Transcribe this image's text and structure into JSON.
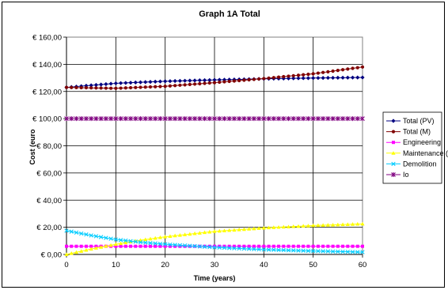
{
  "chart_data": {
    "type": "line",
    "title": "Graph 1A Total",
    "xlabel": "Time (years)",
    "ylabel": "Cost (euro",
    "xlim": [
      0,
      60
    ],
    "ylim": [
      0,
      160
    ],
    "x_ticks": [
      0,
      10,
      20,
      30,
      40,
      50,
      60
    ],
    "y_ticks": [
      "€ 0,00",
      "€ 20,00",
      "€ 40,00",
      "€ 60,00",
      "€ 80,00",
      "€ 100,00",
      "€ 120,00",
      "€ 140,00",
      "€ 160,00"
    ],
    "grid": "major y and x",
    "legend": "right",
    "series": [
      {
        "name": "Total (PV)",
        "color": "#000080",
        "marker": "diamond",
        "x": [
          0,
          10,
          20,
          30,
          40,
          50,
          60
        ],
        "y": [
          123,
          126,
          127.5,
          128.5,
          129.3,
          129.9,
          130.3
        ]
      },
      {
        "name": "Total (M)",
        "color": "#800000",
        "marker": "circle",
        "x": [
          0,
          10,
          20,
          30,
          40,
          50,
          60
        ],
        "y": [
          123,
          122.3,
          123.8,
          126.5,
          129.5,
          133,
          138
        ]
      },
      {
        "name": "Engineering",
        "color": "#ff00ff",
        "marker": "square",
        "x": [
          0,
          10,
          20,
          30,
          40,
          50,
          60
        ],
        "y": [
          6,
          6,
          6,
          6,
          6,
          6,
          6
        ]
      },
      {
        "name": "Maintenance (PV",
        "color": "#ffff00",
        "marker": "triangle",
        "x": [
          0,
          5,
          10,
          15,
          20,
          30,
          40,
          50,
          60
        ],
        "y": [
          0,
          4,
          7.5,
          10.5,
          13,
          17,
          19.5,
          21.3,
          22.5
        ]
      },
      {
        "name": "Demolition",
        "color": "#00ccff",
        "marker": "x",
        "x": [
          0,
          5,
          10,
          15,
          20,
          30,
          40,
          50,
          60
        ],
        "y": [
          17.5,
          14,
          11,
          9,
          7.5,
          5.2,
          3.6,
          2.5,
          1.7
        ]
      },
      {
        "name": "Io",
        "color": "#800080",
        "marker": "star",
        "x": [
          0,
          10,
          20,
          30,
          40,
          50,
          60
        ],
        "y": [
          100,
          100,
          100,
          100,
          100,
          100,
          100
        ]
      }
    ]
  }
}
